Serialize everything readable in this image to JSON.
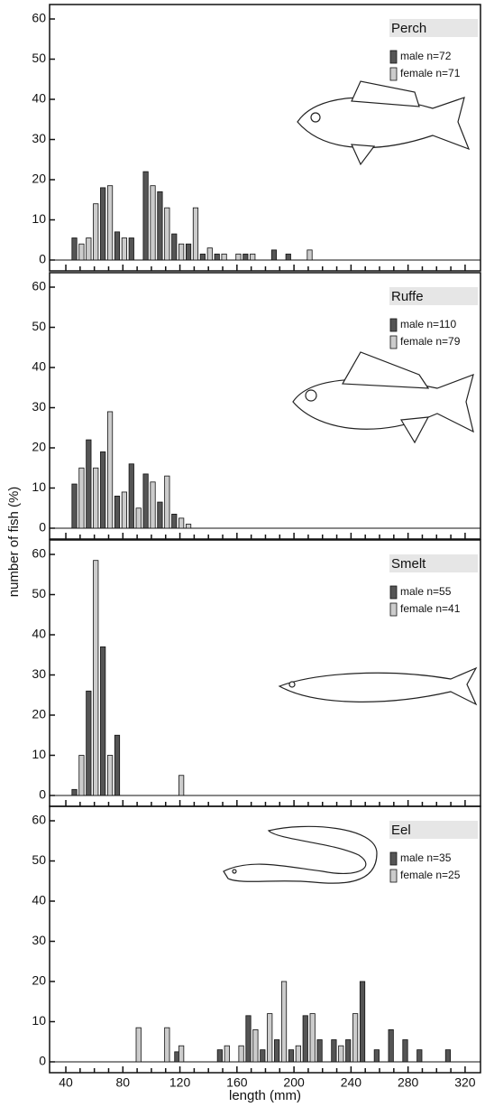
{
  "chart_data": [
    {
      "type": "bar",
      "title": "Perch",
      "ylabel": "number of fish (%)",
      "ylim": [
        -2.7,
        63.6
      ],
      "yticks": [
        0,
        10,
        20,
        30,
        40,
        50,
        60
      ],
      "series": [
        {
          "name": "male n=72",
          "color": "#555555",
          "x": [
            46,
            66,
            76,
            86,
            96,
            106,
            116,
            126,
            136,
            146,
            166,
            186,
            196
          ],
          "values": [
            5.5,
            18,
            7,
            5.5,
            22,
            17,
            6.5,
            4,
            1.5,
            1.5,
            1.5,
            2.5,
            1.5
          ]
        },
        {
          "name": "female n=71",
          "color": "#cccccc",
          "x": [
            51,
            56,
            61,
            71,
            81,
            101,
            111,
            121,
            131,
            141,
            151,
            161,
            171,
            211
          ],
          "values": [
            4,
            5.5,
            14,
            18.5,
            5.5,
            18.5,
            13,
            4,
            13,
            3,
            1.5,
            1.5,
            1.5,
            2.5
          ]
        }
      ]
    },
    {
      "type": "bar",
      "title": "Ruffe",
      "ylim": [
        -2.7,
        63.6
      ],
      "yticks": [
        0,
        10,
        20,
        30,
        40,
        50,
        60
      ],
      "series": [
        {
          "name": "male n=110",
          "color": "#555555",
          "x": [
            46,
            56,
            66,
            76,
            86,
            96,
            106,
            116
          ],
          "values": [
            11,
            22,
            19,
            8,
            16,
            13.5,
            6.5,
            3.5
          ]
        },
        {
          "name": "female n=79",
          "color": "#cccccc",
          "x": [
            51,
            61,
            71,
            81,
            91,
            101,
            111,
            121,
            126
          ],
          "values": [
            15,
            15,
            29,
            9,
            5,
            11.5,
            13,
            2.5,
            1
          ]
        }
      ]
    },
    {
      "type": "bar",
      "title": "Smelt",
      "ylim": [
        -2.7,
        63.6
      ],
      "yticks": [
        0,
        10,
        20,
        30,
        40,
        50,
        60
      ],
      "series": [
        {
          "name": "male n=55",
          "color": "#555555",
          "x": [
            46,
            56,
            66,
            76
          ],
          "values": [
            1.5,
            26,
            37,
            15
          ]
        },
        {
          "name": "female n=41",
          "color": "#cccccc",
          "x": [
            51,
            61,
            71,
            121
          ],
          "values": [
            10,
            58.5,
            10,
            5
          ]
        }
      ]
    },
    {
      "type": "bar",
      "title": "Eel",
      "xlabel": "length (mm)",
      "xlim": [
        28.6,
        330.8
      ],
      "xticks": [
        40,
        80,
        120,
        160,
        200,
        240,
        280,
        320
      ],
      "xminor": [
        50,
        60,
        70,
        90,
        100,
        110,
        130,
        140,
        150,
        170,
        180,
        190,
        210,
        220,
        230,
        250,
        260,
        270,
        290,
        300,
        310
      ],
      "ylim": [
        -2.7,
        63.6
      ],
      "yticks": [
        0,
        10,
        20,
        30,
        40,
        50,
        60
      ],
      "series": [
        {
          "name": "male n=35",
          "color": "#555555",
          "x": [
            118,
            148,
            168,
            178,
            188,
            198,
            208,
            218,
            228,
            238,
            248,
            258,
            268,
            278,
            288,
            308
          ],
          "values": [
            2.5,
            3,
            11.5,
            3,
            5.5,
            3,
            11.5,
            5.5,
            5.5,
            5.5,
            20,
            3,
            8,
            5.5,
            3,
            3
          ]
        },
        {
          "name": "female n=25",
          "color": "#cccccc",
          "x": [
            91,
            111,
            121,
            153,
            163,
            173,
            183,
            193,
            203,
            213,
            233,
            243
          ],
          "values": [
            8.5,
            8.5,
            4,
            4,
            4,
            8,
            12,
            20,
            4,
            12,
            4,
            12
          ]
        }
      ]
    }
  ]
}
